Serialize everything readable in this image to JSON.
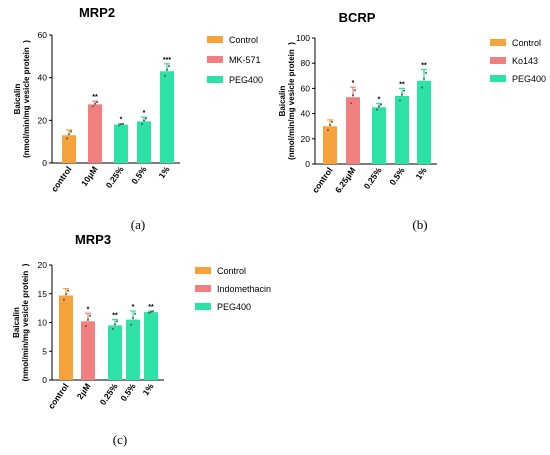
{
  "colors": {
    "control": "#F5A33A",
    "inhibitor": "#F27F7F",
    "peg": "#2DE2A6",
    "axis": "#000000",
    "dot": "#555555"
  },
  "panel_labels": [
    "(a)",
    "(b)",
    "(c)"
  ],
  "chart_data": [
    {
      "type": "bar",
      "title": "MRP2",
      "ylabel_line1": "Baicalin",
      "ylabel_line2": "(nmol/min/mg vesicle protein  )",
      "ylim": [
        0,
        60
      ],
      "yticks": [
        0,
        20,
        40,
        60
      ],
      "categories": [
        "control",
        "10μM",
        "0.25%",
        "0.5%",
        "1%"
      ],
      "values": [
        13,
        27.5,
        18,
        19.5,
        43
      ],
      "errors": [
        2.5,
        1.5,
        0.5,
        2,
        3.5
      ],
      "significance": [
        "",
        "**",
        "*",
        "*",
        "***"
      ],
      "groups": [
        "control",
        "inhibitor",
        "peg",
        "peg",
        "peg"
      ],
      "legend": [
        "Control",
        "MK-571",
        "PEG400"
      ]
    },
    {
      "type": "bar",
      "title": "BCRP",
      "ylabel_line1": "Baicalin",
      "ylabel_line2": "(nmol/min/mg vesicle protein  )",
      "ylim": [
        0,
        100
      ],
      "yticks": [
        0,
        20,
        40,
        60,
        80,
        100
      ],
      "categories": [
        "control",
        "6.25μM",
        "0.25%",
        "0.5%",
        "1%"
      ],
      "values": [
        30,
        53,
        45,
        54,
        66
      ],
      "errors": [
        5,
        8,
        3,
        6,
        9
      ],
      "significance": [
        "",
        "*",
        "*",
        "**",
        "**"
      ],
      "groups": [
        "control",
        "inhibitor",
        "peg",
        "peg",
        "peg"
      ],
      "legend": [
        "Control",
        "Ko143",
        "PEG400"
      ]
    },
    {
      "type": "bar",
      "title": "MRP3",
      "ylabel_line1": "Baicalin",
      "ylabel_line2": "(nmol/min/mg vesicle protein  )",
      "ylim": [
        0,
        20
      ],
      "yticks": [
        0,
        5,
        10,
        15,
        20
      ],
      "categories": [
        "control",
        "2μM",
        "0.25%",
        "0.5%",
        "1%"
      ],
      "values": [
        14.7,
        10.2,
        9.5,
        10.5,
        11.8
      ],
      "errors": [
        1.2,
        1.4,
        1.0,
        1.5,
        0.2
      ],
      "significance": [
        "",
        "*",
        "**",
        "*",
        "**"
      ],
      "groups": [
        "control",
        "inhibitor",
        "peg",
        "peg",
        "peg"
      ],
      "legend": [
        "Control",
        "Indomethacin",
        "PEG400"
      ]
    }
  ]
}
